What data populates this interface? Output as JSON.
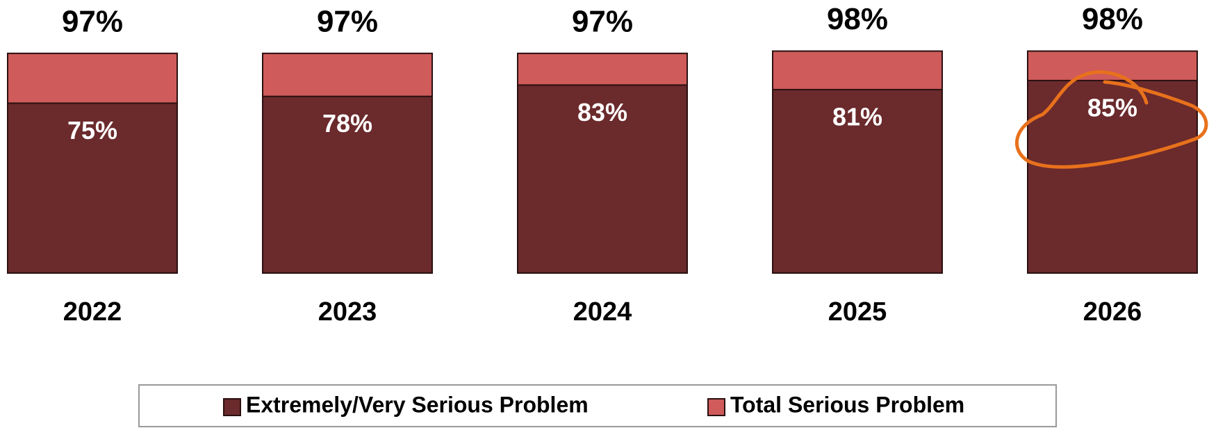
{
  "chart_data": {
    "type": "bar",
    "categories": [
      "2022",
      "2023",
      "2024",
      "2025",
      "2026"
    ],
    "series": [
      {
        "name": "Extremely/Very Serious Problem",
        "color": "#6b2a2c",
        "values": [
          75,
          78,
          83,
          81,
          85
        ],
        "value_labels": [
          "75%",
          "78%",
          "83%",
          "81%",
          "85%"
        ]
      },
      {
        "name": "Total Serious Problem",
        "color": "#cf5b5b",
        "values": [
          97,
          97,
          97,
          98,
          98
        ],
        "value_labels": [
          "97%",
          "97%",
          "97%",
          "98%",
          "98%"
        ]
      }
    ],
    "ylim": [
      0,
      100
    ]
  }
}
